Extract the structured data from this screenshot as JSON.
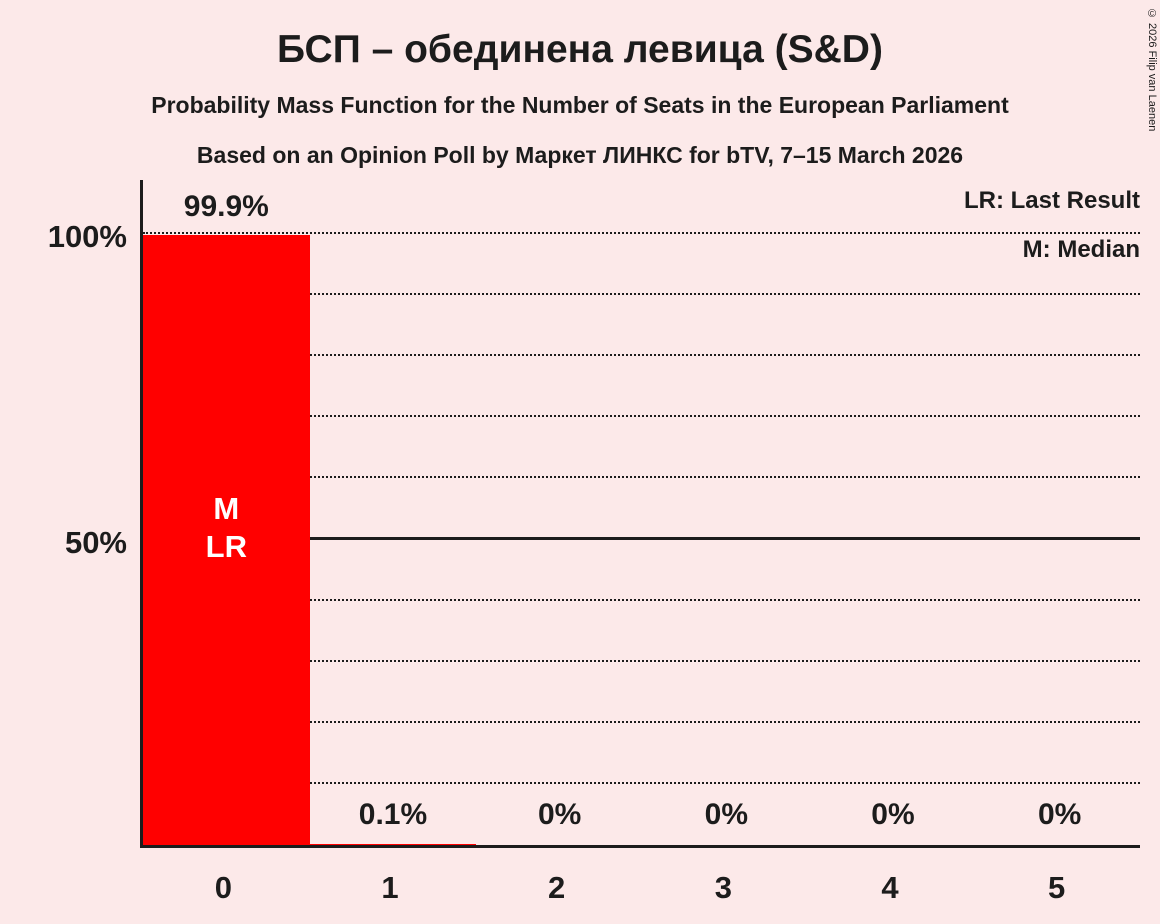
{
  "copyright": "© 2026 Filip van Laenen",
  "chart_data": {
    "type": "bar",
    "title": "БСП – обединена левица (S&D)",
    "subtitle": "Probability Mass Function for the Number of Seats in the European Parliament",
    "poll_info": "Based on an Opinion Poll by Маркет ЛИНКС for bTV, 7–15 March 2026",
    "categories": [
      "0",
      "1",
      "2",
      "3",
      "4",
      "5"
    ],
    "values": [
      99.9,
      0.1,
      0,
      0,
      0,
      0
    ],
    "value_labels": [
      "99.9%",
      "0.1%",
      "0%",
      "0%",
      "0%",
      "0%"
    ],
    "ylim": [
      0,
      100
    ],
    "yticks": [
      {
        "value": 100,
        "label": "100%"
      },
      {
        "value": 50,
        "label": "50%"
      }
    ],
    "gridlines": {
      "values": [
        10,
        20,
        30,
        40,
        50,
        60,
        70,
        80,
        90,
        100
      ],
      "solid": [
        50
      ]
    },
    "legend": [
      "LR: Last Result",
      "M: Median"
    ],
    "legend_position": "top-right",
    "grid": "horizontal dotted, solid at 50%",
    "bar_color": "#ff0000",
    "background_color": "#fce9e9",
    "annotations": [
      {
        "bar": 0,
        "lines": [
          "M",
          "LR"
        ]
      }
    ]
  }
}
